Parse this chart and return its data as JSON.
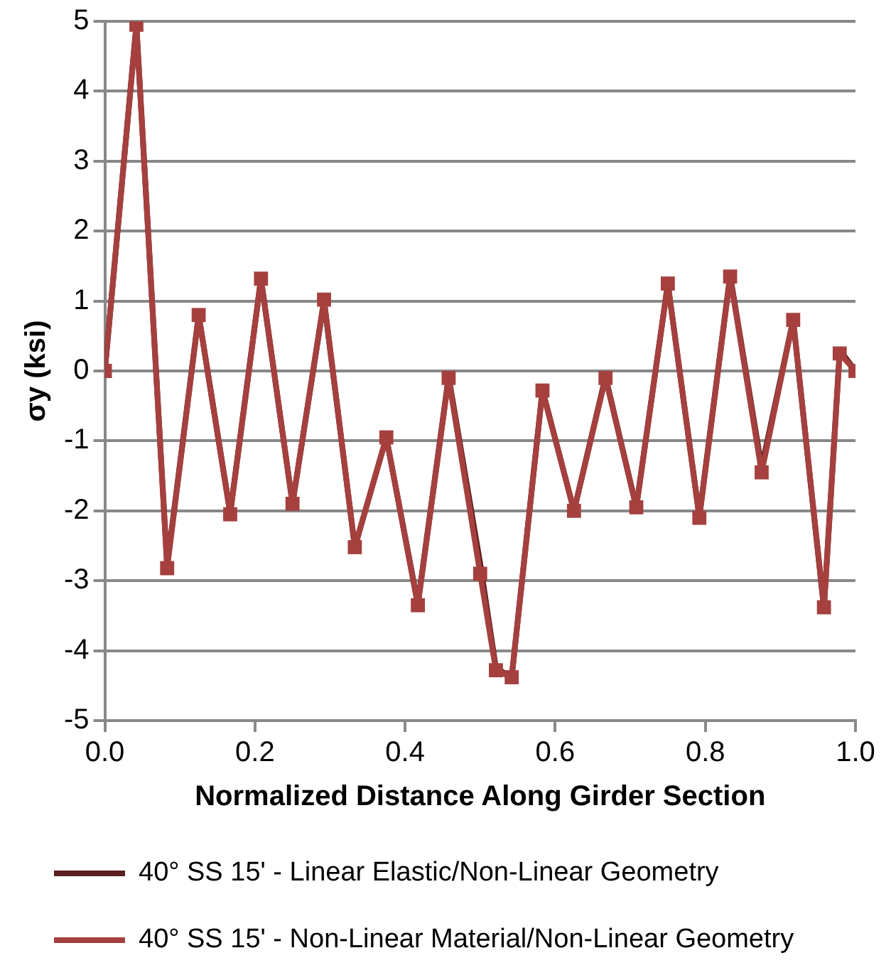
{
  "chart_data": {
    "type": "line",
    "xlabel": "Normalized Distance Along Girder Section",
    "ylabel": "σy (ksi)",
    "x": [
      0,
      0.042,
      0.083,
      0.125,
      0.167,
      0.208,
      0.25,
      0.292,
      0.333,
      0.375,
      0.417,
      0.458,
      0.5,
      0.521,
      0.542,
      0.583,
      0.625,
      0.667,
      0.708,
      0.75,
      0.792,
      0.833,
      0.875,
      0.917,
      0.958,
      0.979,
      1.0
    ],
    "series": [
      {
        "name": "40° SS 15' - Linear Elastic/Non-Linear Geometry",
        "color": "#5c1f1f",
        "marker": "none",
        "values": [
          0,
          4.95,
          -2.78,
          0.8,
          -2.03,
          1.32,
          -1.9,
          1.0,
          -2.52,
          -0.95,
          -3.33,
          -0.08,
          -2.75,
          -4.25,
          -4.38,
          -0.27,
          -2.0,
          -0.08,
          -1.95,
          1.25,
          -2.08,
          1.37,
          -1.38,
          0.73,
          -3.4,
          0.3,
          0
        ]
      },
      {
        "name": "40° SS 15' - Non-Linear Material/Non-Linear Geometry",
        "color": "#a5403e",
        "marker": "square",
        "values": [
          0,
          4.95,
          -2.82,
          0.8,
          -2.05,
          1.32,
          -1.9,
          1.02,
          -2.52,
          -0.95,
          -3.35,
          -0.1,
          -2.9,
          -4.28,
          -4.38,
          -0.28,
          -2.0,
          -0.1,
          -1.95,
          1.25,
          -2.1,
          1.35,
          -1.45,
          0.73,
          -3.38,
          0.25,
          0
        ]
      }
    ],
    "xlim": [
      0,
      1.0
    ],
    "xticks": [
      {
        "value": 0,
        "label": "0.0"
      },
      0.2,
      0.4,
      0.6,
      0.8,
      {
        "value": 1.0,
        "label": "1.0"
      }
    ],
    "ylim": [
      -5,
      5
    ],
    "yticks": [
      -5,
      -4,
      -3,
      -2,
      -1,
      0,
      1,
      2,
      3,
      4,
      5
    ],
    "grid": "y",
    "legend": "bottom",
    "line_style": "solid"
  }
}
